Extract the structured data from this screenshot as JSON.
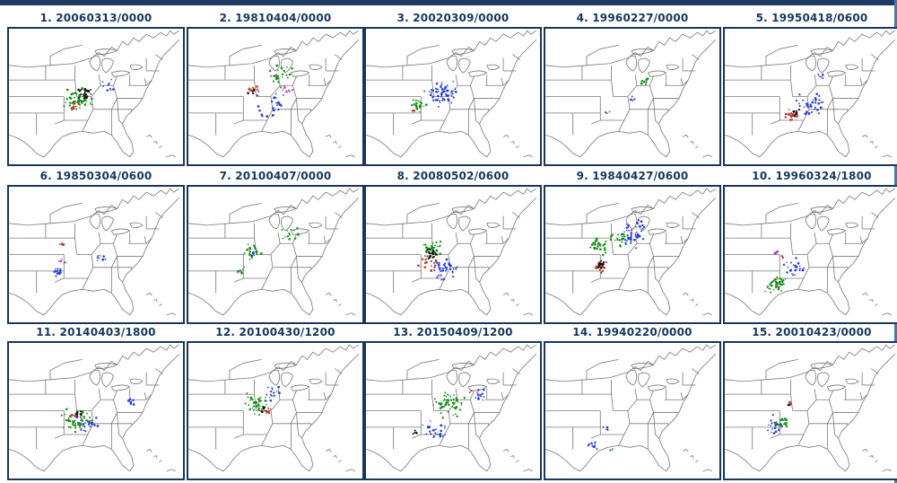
{
  "panels": [
    {
      "title": "1. 20060313/0000",
      "clusters": [
        {
          "color": "#1a8c1a",
          "x": 40,
          "y": 52,
          "spread": 11,
          "n": 60
        },
        {
          "color": "#111111",
          "x": 44,
          "y": 47,
          "spread": 6,
          "n": 22
        },
        {
          "color": "#c0392b",
          "x": 38,
          "y": 55,
          "spread": 6,
          "n": 10
        },
        {
          "color": "#2a3fd6",
          "x": 56,
          "y": 42,
          "spread": 6,
          "n": 10
        }
      ]
    },
    {
      "title": "2. 19810404/0000",
      "clusters": [
        {
          "color": "#c0392b",
          "x": 38,
          "y": 45,
          "spread": 4,
          "n": 10
        },
        {
          "color": "#111111",
          "x": 37,
          "y": 47,
          "spread": 3,
          "n": 6
        },
        {
          "color": "#1a8c1a",
          "x": 52,
          "y": 35,
          "spread": 10,
          "n": 25
        },
        {
          "color": "#2a3fd6",
          "x": 48,
          "y": 58,
          "spread": 14,
          "n": 25
        },
        {
          "color": "#b03dbf",
          "x": 57,
          "y": 45,
          "spread": 6,
          "n": 10
        }
      ]
    },
    {
      "title": "3. 20020309/0000",
      "clusters": [
        {
          "color": "#2a3fd6",
          "x": 44,
          "y": 48,
          "spread": 12,
          "n": 60
        },
        {
          "color": "#1a8c1a",
          "x": 30,
          "y": 56,
          "spread": 6,
          "n": 22
        },
        {
          "color": "#c0392b",
          "x": 28,
          "y": 60,
          "spread": 2,
          "n": 3
        }
      ]
    },
    {
      "title": "4. 19960227/0000",
      "clusters": [
        {
          "color": "#1a8c1a",
          "x": 56,
          "y": 40,
          "spread": 5,
          "n": 8
        },
        {
          "color": "#2a3fd6",
          "x": 50,
          "y": 52,
          "spread": 4,
          "n": 4
        },
        {
          "color": "#1a8c1a",
          "x": 36,
          "y": 62,
          "spread": 3,
          "n": 3
        }
      ]
    },
    {
      "title": "5. 19950418/0600",
      "clusters": [
        {
          "color": "#c0392b",
          "x": 38,
          "y": 64,
          "spread": 6,
          "n": 25
        },
        {
          "color": "#111111",
          "x": 40,
          "y": 63,
          "spread": 4,
          "n": 8
        },
        {
          "color": "#2a3fd6",
          "x": 48,
          "y": 56,
          "spread": 12,
          "n": 40
        },
        {
          "color": "#2a3fd6",
          "x": 55,
          "y": 35,
          "spread": 3,
          "n": 6
        }
      ]
    },
    {
      "title": "6. 19850304/0600",
      "clusters": [
        {
          "color": "#c0392b",
          "x": 30,
          "y": 42,
          "spread": 3,
          "n": 6
        },
        {
          "color": "#2a3fd6",
          "x": 28,
          "y": 62,
          "spread": 5,
          "n": 15
        },
        {
          "color": "#2a3fd6",
          "x": 52,
          "y": 52,
          "spread": 6,
          "n": 10
        },
        {
          "color": "#b03dbf",
          "x": 30,
          "y": 55,
          "spread": 3,
          "n": 5
        }
      ]
    },
    {
      "title": "7. 20100407/0000",
      "clusters": [
        {
          "color": "#1a8c1a",
          "x": 36,
          "y": 48,
          "spread": 8,
          "n": 25
        },
        {
          "color": "#1a8c1a",
          "x": 58,
          "y": 35,
          "spread": 8,
          "n": 15
        },
        {
          "color": "#2a3fd6",
          "x": 38,
          "y": 50,
          "spread": 4,
          "n": 6
        },
        {
          "color": "#1a8c1a",
          "x": 30,
          "y": 62,
          "spread": 4,
          "n": 8
        }
      ]
    },
    {
      "title": "8. 20080502/0600",
      "clusters": [
        {
          "color": "#1a8c1a",
          "x": 38,
          "y": 46,
          "spread": 8,
          "n": 40
        },
        {
          "color": "#2a3fd6",
          "x": 45,
          "y": 60,
          "spread": 10,
          "n": 45
        },
        {
          "color": "#111111",
          "x": 38,
          "y": 50,
          "spread": 6,
          "n": 20
        },
        {
          "color": "#c0392b",
          "x": 36,
          "y": 56,
          "spread": 7,
          "n": 18
        }
      ]
    },
    {
      "title": "9. 19840427/0600",
      "clusters": [
        {
          "color": "#1a8c1a",
          "x": 30,
          "y": 44,
          "spread": 7,
          "n": 35
        },
        {
          "color": "#c0392b",
          "x": 32,
          "y": 60,
          "spread": 5,
          "n": 20
        },
        {
          "color": "#111111",
          "x": 33,
          "y": 57,
          "spread": 4,
          "n": 10
        },
        {
          "color": "#2a3fd6",
          "x": 50,
          "y": 35,
          "spread": 12,
          "n": 50
        },
        {
          "color": "#1a8c1a",
          "x": 42,
          "y": 38,
          "spread": 8,
          "n": 20
        }
      ]
    },
    {
      "title": "10. 19960324/1800",
      "clusters": [
        {
          "color": "#1a8c1a",
          "x": 30,
          "y": 72,
          "spread": 8,
          "n": 40
        },
        {
          "color": "#2a3fd6",
          "x": 40,
          "y": 60,
          "spread": 8,
          "n": 30
        },
        {
          "color": "#b03dbf",
          "x": 30,
          "y": 48,
          "spread": 3,
          "n": 6
        },
        {
          "color": "#c0392b",
          "x": 34,
          "y": 52,
          "spread": 3,
          "n": 4
        }
      ]
    },
    {
      "title": "11. 20140403/1800",
      "clusters": [
        {
          "color": "#1a8c1a",
          "x": 38,
          "y": 58,
          "spread": 12,
          "n": 55
        },
        {
          "color": "#2a3fd6",
          "x": 45,
          "y": 60,
          "spread": 8,
          "n": 30
        },
        {
          "color": "#111111",
          "x": 40,
          "y": 52,
          "spread": 4,
          "n": 8
        },
        {
          "color": "#c0392b",
          "x": 36,
          "y": 54,
          "spread": 3,
          "n": 5
        },
        {
          "color": "#2a3fd6",
          "x": 70,
          "y": 44,
          "spread": 4,
          "n": 8
        }
      ]
    },
    {
      "title": "12. 20100430/1200",
      "clusters": [
        {
          "color": "#1a8c1a",
          "x": 40,
          "y": 45,
          "spread": 10,
          "n": 40
        },
        {
          "color": "#2a3fd6",
          "x": 50,
          "y": 38,
          "spread": 8,
          "n": 15
        },
        {
          "color": "#c0392b",
          "x": 46,
          "y": 50,
          "spread": 4,
          "n": 8
        },
        {
          "color": "#111111",
          "x": 44,
          "y": 48,
          "spread": 3,
          "n": 5
        }
      ]
    },
    {
      "title": "13. 20150409/1200",
      "clusters": [
        {
          "color": "#1a8c1a",
          "x": 48,
          "y": 46,
          "spread": 14,
          "n": 50
        },
        {
          "color": "#2a3fd6",
          "x": 40,
          "y": 66,
          "spread": 10,
          "n": 25
        },
        {
          "color": "#2a3fd6",
          "x": 65,
          "y": 38,
          "spread": 6,
          "n": 15
        },
        {
          "color": "#111111",
          "x": 28,
          "y": 66,
          "spread": 3,
          "n": 5
        },
        {
          "color": "#c0392b",
          "x": 60,
          "y": 36,
          "spread": 2,
          "n": 3
        }
      ]
    },
    {
      "title": "14. 19940220/0000",
      "clusters": [
        {
          "color": "#2a3fd6",
          "x": 26,
          "y": 75,
          "spread": 5,
          "n": 10
        },
        {
          "color": "#2a3fd6",
          "x": 36,
          "y": 62,
          "spread": 3,
          "n": 4
        },
        {
          "color": "#1a8c1a",
          "x": 38,
          "y": 78,
          "spread": 2,
          "n": 2
        }
      ]
    },
    {
      "title": "15. 20010423/0000",
      "clusters": [
        {
          "color": "#1a8c1a",
          "x": 32,
          "y": 58,
          "spread": 8,
          "n": 30
        },
        {
          "color": "#2a3fd6",
          "x": 28,
          "y": 62,
          "spread": 6,
          "n": 15
        },
        {
          "color": "#c0392b",
          "x": 38,
          "y": 45,
          "spread": 2,
          "n": 4
        },
        {
          "color": "#111111",
          "x": 37,
          "y": 46,
          "spread": 1,
          "n": 2
        }
      ]
    }
  ]
}
